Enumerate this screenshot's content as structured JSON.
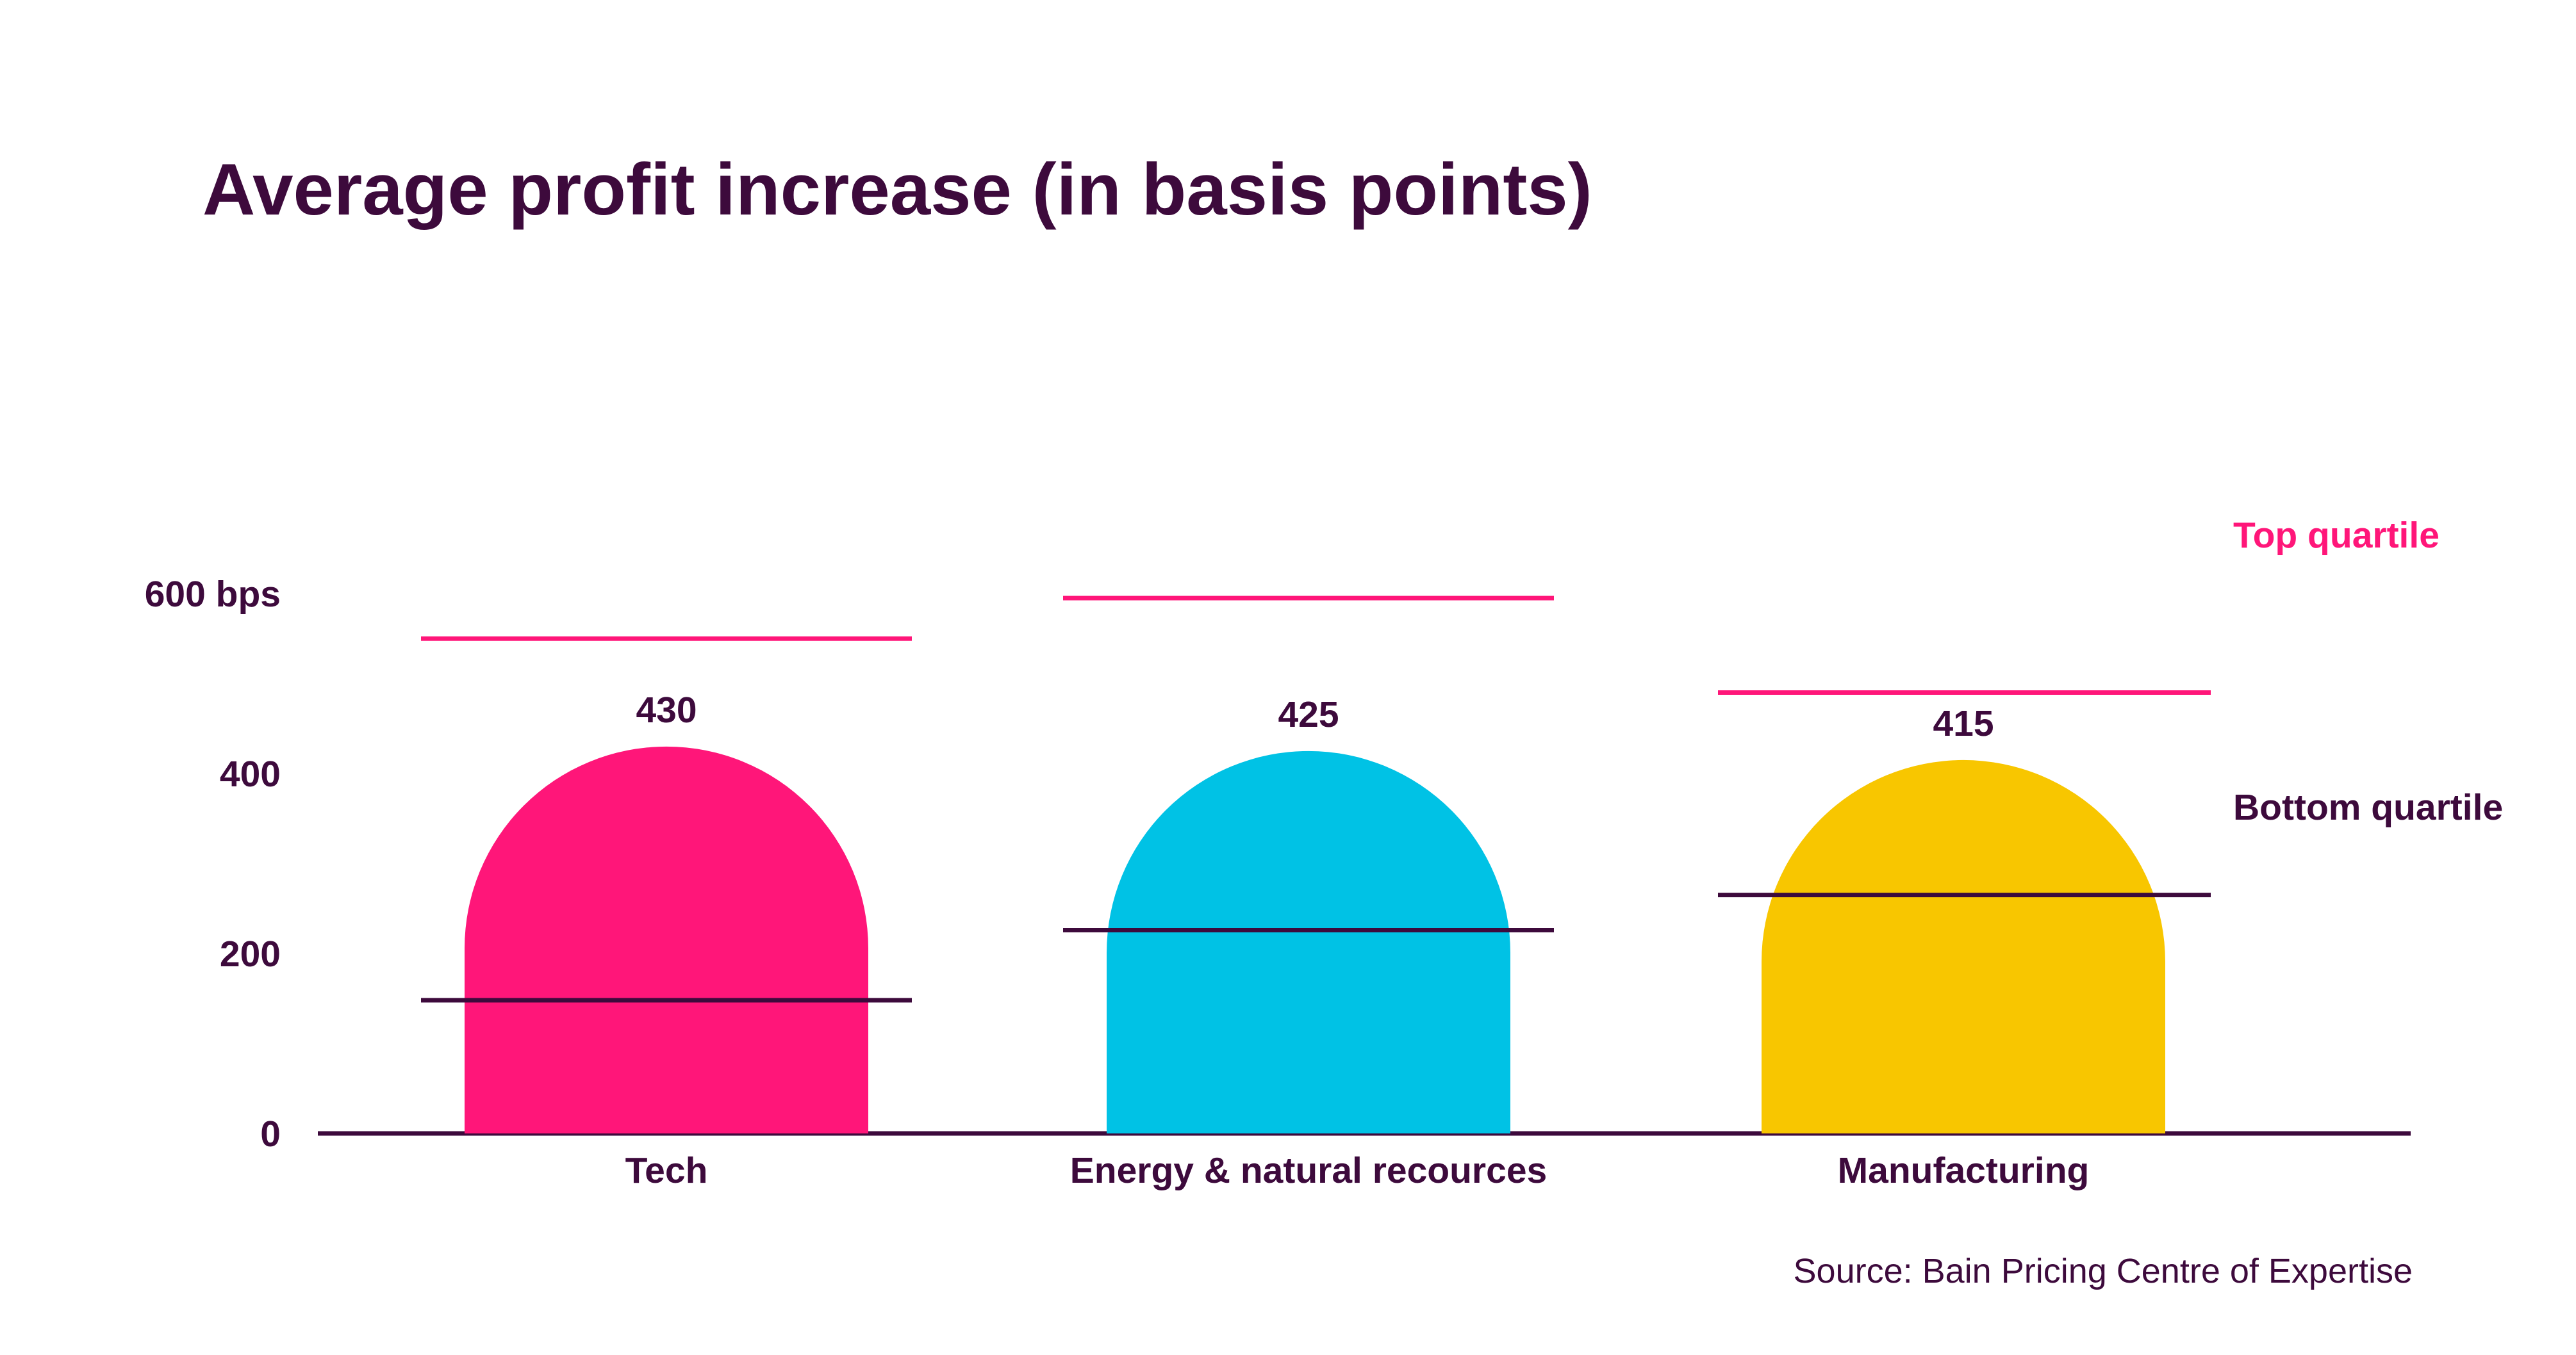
{
  "colors": {
    "text": "#3d0a3c",
    "axis": "#3d0a3c",
    "top_quartile": "#ff1679",
    "bottom_quartile": "#3d0a3c",
    "bars": [
      "#ff1679",
      "#00c2e5",
      "#f8c600"
    ]
  },
  "chart_data": {
    "type": "bar",
    "title": "Average profit increase (in basis points)",
    "xlabel": "",
    "ylabel": "",
    "ylim": [
      0,
      600
    ],
    "y_ticks": [
      {
        "value": 0,
        "label": "0"
      },
      {
        "value": 200,
        "label": "200"
      },
      {
        "value": 400,
        "label": "400"
      },
      {
        "value": 600,
        "label": "600 bps"
      }
    ],
    "categories": [
      "Tech",
      "Energy & natural recources",
      "Manufacturing"
    ],
    "series": [
      {
        "values": [
          430,
          425,
          415
        ],
        "labels": [
          "430",
          "425",
          "415"
        ]
      }
    ],
    "top_quartile": [
      550,
      595,
      490
    ],
    "bottom_quartile": [
      148,
      226,
      265
    ],
    "legend": {
      "top_quartile": "Top quartile",
      "bottom_quartile": "Bottom quartile",
      "placement": "right"
    },
    "grid": false,
    "source": "Source: Bain Pricing Centre of Expertise"
  }
}
